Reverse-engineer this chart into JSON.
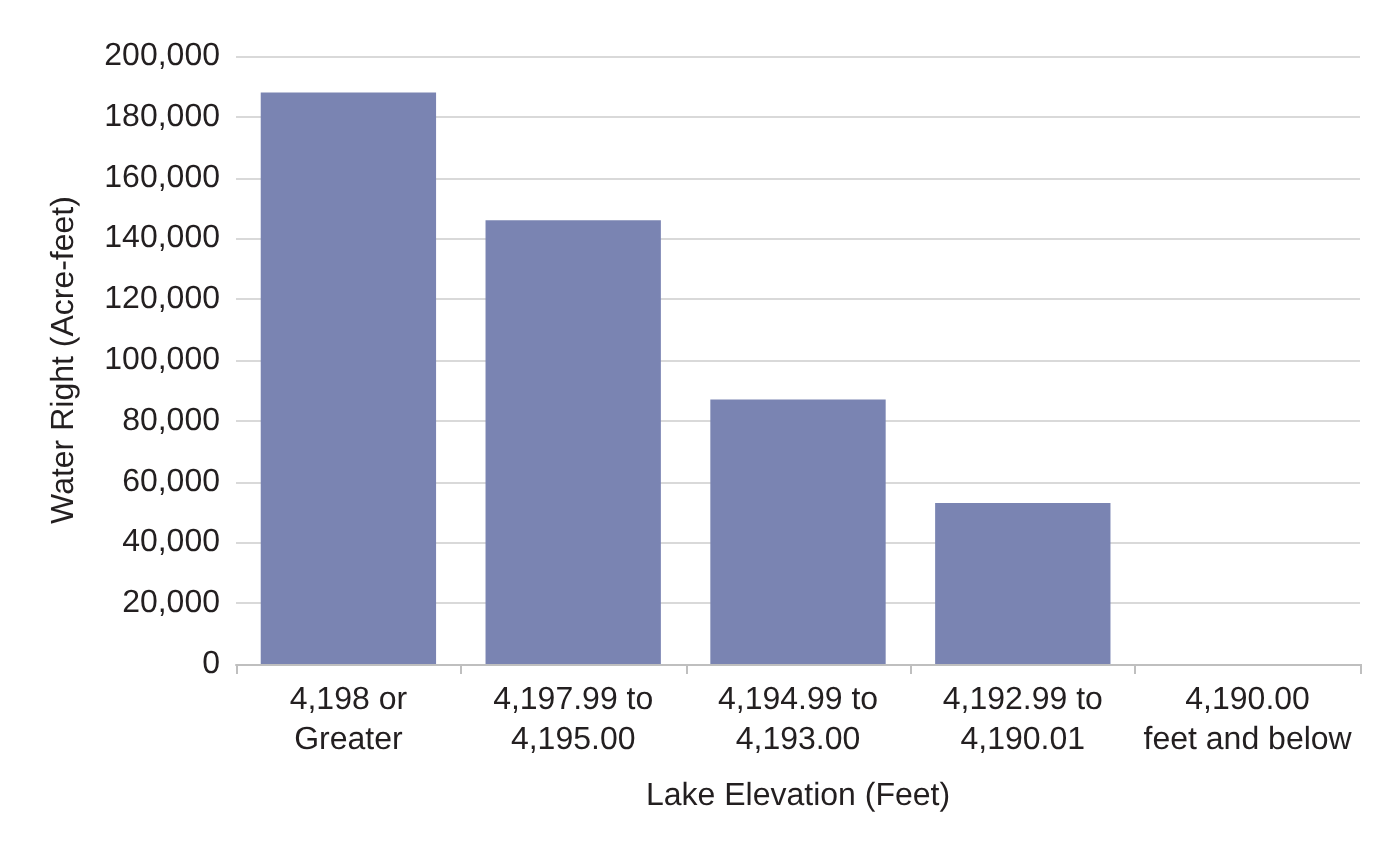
{
  "chart_data": {
    "type": "bar",
    "xlabel": "Lake Elevation (Feet)",
    "ylabel": "Water Right (Acre-feet)",
    "categories": [
      "4,198 or\nGreater",
      "4,197.99 to\n4,195.00",
      "4,194.99 to\n4,193.00",
      "4,192.99 to\n4,190.01",
      "4,190.00\nfeet and below"
    ],
    "values": [
      188000,
      146000,
      87000,
      53000,
      0
    ],
    "color": "#7a84b2",
    "ylim": [
      0,
      200000
    ],
    "yticks": [
      0,
      {
        "value": 20000,
        "label": "20,000"
      },
      {
        "value": 40000,
        "label": "40,000"
      },
      {
        "value": 60000,
        "label": "60,000"
      },
      {
        "value": 80000,
        "label": "80,000"
      },
      {
        "value": 100000,
        "label": "100,000"
      },
      {
        "value": 120000,
        "label": "120,000"
      },
      {
        "value": 140000,
        "label": "140,000"
      },
      {
        "value": 160000,
        "label": "160,000"
      },
      {
        "value": 180000,
        "label": "180,000"
      },
      {
        "value": 200000,
        "label": "200,000"
      }
    ],
    "grid": "y"
  }
}
